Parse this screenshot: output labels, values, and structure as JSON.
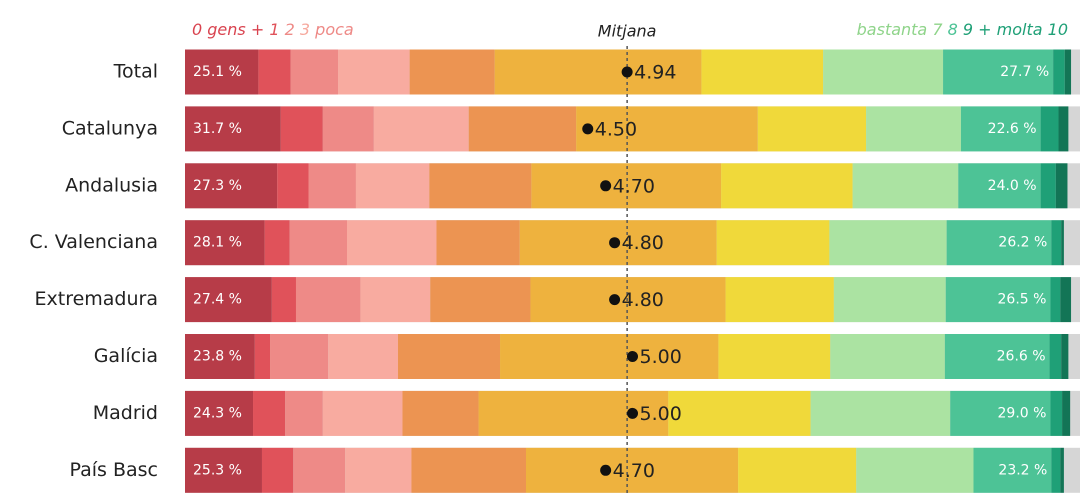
{
  "chart_data": {
    "type": "stacked_bar_100",
    "legend_low": [
      {
        "text": "0 gens +",
        "color": "#d9434f"
      },
      {
        "text": "1",
        "color": "#e0525a"
      },
      {
        "text": "2",
        "color": "#ee8a87"
      },
      {
        "text": "3",
        "color": "#f6a99e"
      },
      {
        "text": "poca",
        "color": "#ee8a87"
      }
    ],
    "legend_high": [
      {
        "text": "bastanta",
        "color": "#8fd48a"
      },
      {
        "text": "7",
        "color": "#8fd48a"
      },
      {
        "text": "8",
        "color": "#4dc396"
      },
      {
        "text": "9 +",
        "color": "#1fa077"
      },
      {
        "text": "molta 10",
        "color": "#1fa077"
      }
    ],
    "mean_title": "Mitjana",
    "categories": [
      "Total",
      "Catalunya",
      "Andalusia",
      "C. Valenciana",
      "Extremadura",
      "Galícia",
      "Madrid",
      "País Basc"
    ],
    "xlim": [
      0,
      100
    ],
    "mean_xlim": [
      0,
      10
    ],
    "series": [
      {
        "color": "#b73c48",
        "values": [
          8.2,
          10.7,
          10.3,
          8.9,
          9.7,
          7.8,
          7.6,
          8.6
        ]
      },
      {
        "color": "#e0525a",
        "values": [
          3.6,
          4.7,
          3.5,
          2.8,
          2.7,
          1.7,
          3.6,
          3.5
        ]
      },
      {
        "color": "#ee8a87",
        "values": [
          5.3,
          5.7,
          5.3,
          6.4,
          7.2,
          6.5,
          4.2,
          5.8
        ]
      },
      {
        "color": "#f8aba0",
        "values": [
          8.0,
          10.6,
          8.2,
          10.0,
          7.8,
          7.8,
          8.9,
          7.4
        ]
      },
      {
        "color": "#ec9452",
        "values": [
          9.5,
          12.0,
          11.4,
          9.3,
          11.2,
          11.4,
          8.5,
          12.8
        ]
      },
      {
        "color": "#eeb23e",
        "values": [
          23.1,
          20.3,
          21.2,
          22.0,
          21.8,
          24.4,
          21.2,
          23.7
        ]
      },
      {
        "color": "#f0d93a",
        "values": [
          13.6,
          12.1,
          14.7,
          12.6,
          12.1,
          12.5,
          15.9,
          13.2
        ]
      },
      {
        "color": "#abe3a2",
        "values": [
          13.4,
          10.6,
          11.8,
          13.1,
          12.5,
          12.8,
          15.6,
          13.1
        ]
      },
      {
        "color": "#4dc396",
        "values": [
          12.3,
          8.9,
          9.2,
          11.7,
          11.7,
          11.7,
          11.2,
          8.7
        ]
      },
      {
        "color": "#1fa077",
        "values": [
          1.3,
          2.0,
          1.7,
          1.1,
          1.1,
          1.3,
          1.3,
          1.0
        ]
      },
      {
        "color": "#137556",
        "values": [
          0.7,
          1.1,
          1.3,
          0.3,
          1.2,
          0.8,
          0.9,
          0.4
        ]
      }
    ],
    "low_totals": {
      "values": [
        25.1,
        31.7,
        27.3,
        28.1,
        27.4,
        23.8,
        24.3,
        25.3
      ],
      "value_labels": [
        "25.1 %",
        "31.7 %",
        "27.3 %",
        "28.1 %",
        "27.4 %",
        "23.8 %",
        "24.3 %",
        "25.3 %"
      ]
    },
    "high_totals": {
      "values": [
        27.7,
        22.6,
        24.0,
        26.2,
        26.5,
        26.6,
        29.0,
        23.2
      ],
      "value_labels": [
        "27.7 %",
        "22.6 %",
        "24.0 %",
        "26.2 %",
        "26.5 %",
        "26.6 %",
        "29.0 %",
        "23.2 %"
      ]
    },
    "means": {
      "values": [
        4.94,
        4.5,
        4.7,
        4.8,
        4.8,
        5.0,
        5.0,
        4.7
      ],
      "value_labels": [
        "4.94",
        "4.50",
        "4.70",
        "4.80",
        "4.80",
        "5.00",
        "5.00",
        "4.70"
      ]
    }
  }
}
